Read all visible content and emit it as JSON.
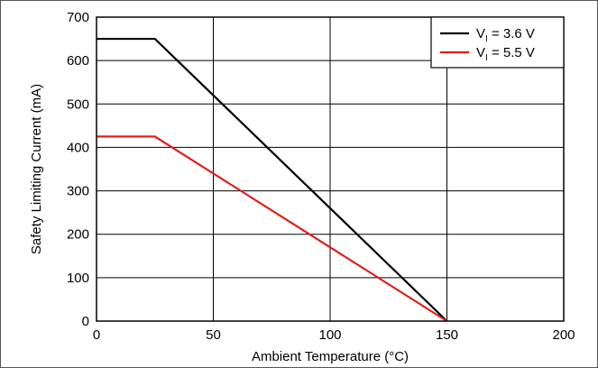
{
  "chart_data": {
    "type": "line",
    "title": "",
    "xlabel": "Ambient Temperature (°C)",
    "ylabel": "Safety Limiting Current (mA)",
    "xlim": [
      0,
      200
    ],
    "ylim": [
      0,
      700
    ],
    "x_ticks": [
      0,
      50,
      100,
      150,
      200
    ],
    "y_ticks": [
      0,
      100,
      200,
      300,
      400,
      500,
      600,
      700
    ],
    "grid": true,
    "legend_position": "top-right",
    "series": [
      {
        "name": "V_I = 3.6 V",
        "label_main": "V",
        "label_sub": "I",
        "label_rest": " = 3.6 V",
        "color": "#000000",
        "points": [
          [
            0,
            650
          ],
          [
            25,
            650
          ],
          [
            150,
            0
          ]
        ]
      },
      {
        "name": "V_I = 5.5 V",
        "label_main": "V",
        "label_sub": "I",
        "label_rest": " = 5.5 V",
        "color": "#e31b1b",
        "points": [
          [
            0,
            425
          ],
          [
            25,
            425
          ],
          [
            150,
            0
          ]
        ]
      }
    ]
  }
}
